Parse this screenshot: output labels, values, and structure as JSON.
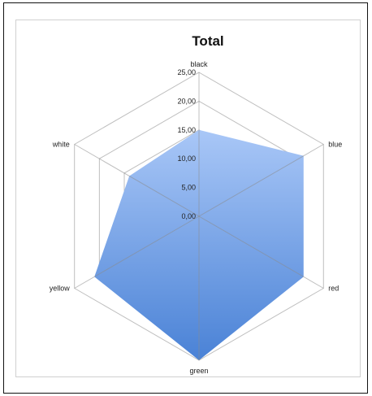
{
  "chart_data": {
    "type": "radar",
    "title": "Total",
    "categories": [
      "black",
      "blue",
      "red",
      "green",
      "yellow",
      "white"
    ],
    "series": [
      {
        "values": [
          15,
          21,
          21,
          25,
          21,
          14
        ]
      }
    ],
    "rlim": [
      0,
      25
    ],
    "ticks": [
      "0,00",
      "5,00",
      "10,00",
      "15,00",
      "20,00",
      "25,00"
    ],
    "grid": true,
    "legend": "none",
    "colors": {
      "fill_top": "#a9c7f7",
      "fill_bottom": "#4a82d6",
      "grid": "#bfbfbf"
    }
  }
}
